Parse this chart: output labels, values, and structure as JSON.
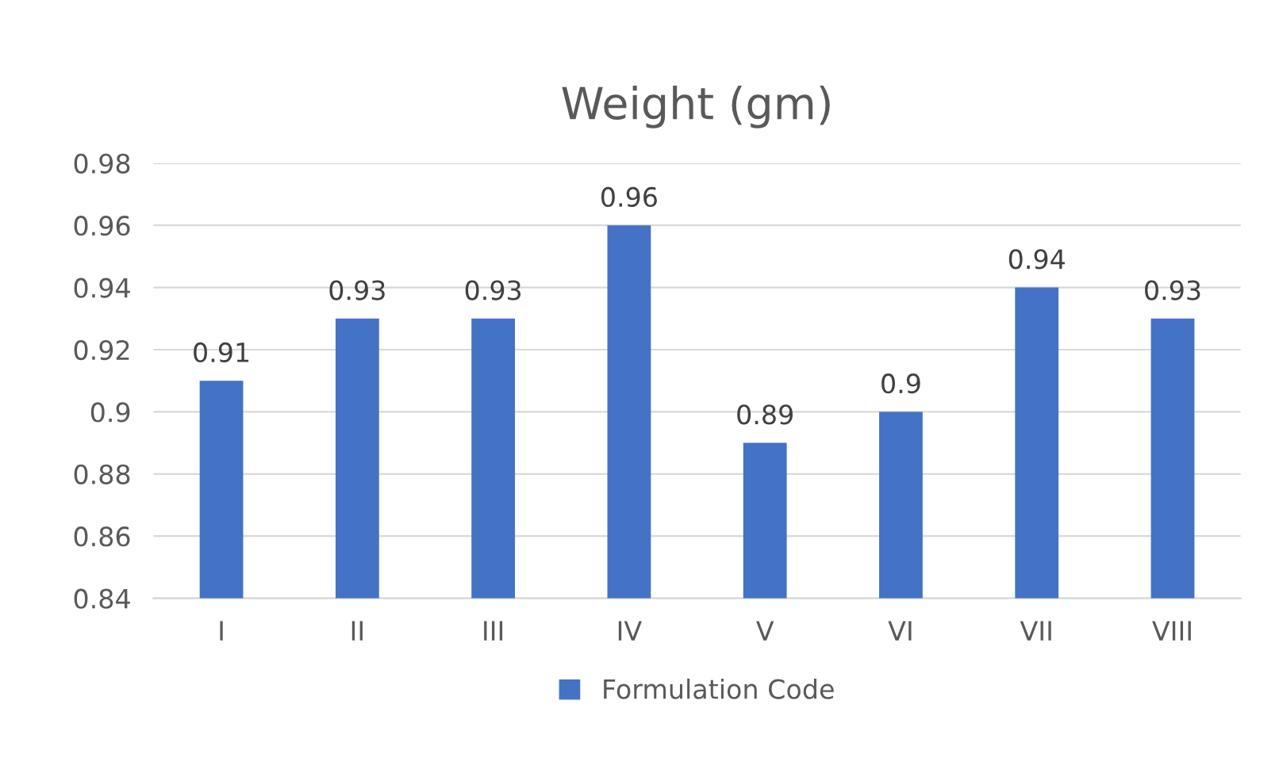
{
  "chart_data": {
    "type": "bar",
    "title": "Weight (gm)",
    "categories": [
      "I",
      "II",
      "III",
      "IV",
      "V",
      "VI",
      "VII",
      "VIII"
    ],
    "series": [
      {
        "name": "Formulation Code",
        "color": "#4472c4",
        "values": [
          0.91,
          0.93,
          0.93,
          0.96,
          0.89,
          0.9,
          0.94,
          0.93
        ]
      }
    ],
    "ylim": [
      0.84,
      0.98
    ],
    "yticks": [
      0.84,
      0.86,
      0.88,
      0.9,
      0.92,
      0.94,
      0.96,
      0.98
    ],
    "grid": "y",
    "legend": "bottom",
    "data_labels": true
  }
}
